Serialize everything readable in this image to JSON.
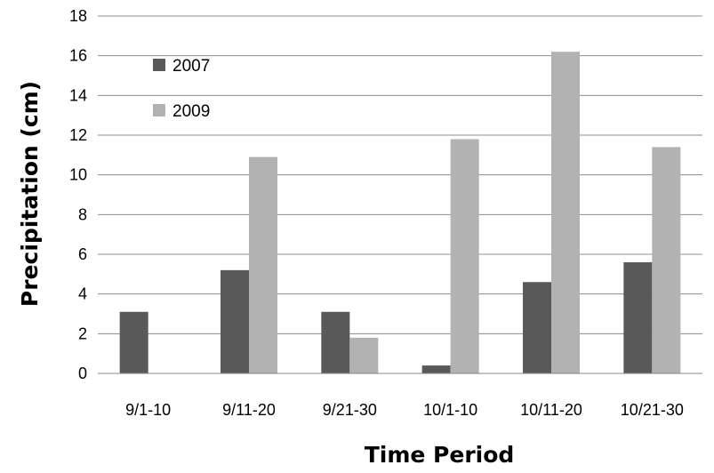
{
  "chart_data": {
    "type": "bar",
    "title": "",
    "xlabel": "Time Period",
    "ylabel": "Precipitation (cm)",
    "ylim": [
      0,
      18
    ],
    "yticks": [
      0,
      2,
      4,
      6,
      8,
      10,
      12,
      14,
      16,
      18
    ],
    "grid": true,
    "legend_position": "top-left",
    "categories": [
      "9/1-10",
      "9/11-20",
      "9/21-30",
      "10/1-10",
      "10/11-20",
      "10/21-30"
    ],
    "series": [
      {
        "name": "2007",
        "color": "#595959",
        "values": [
          3.1,
          5.2,
          3.1,
          0.4,
          4.6,
          5.6
        ]
      },
      {
        "name": "2009",
        "color": "#b2b2b2",
        "values": [
          0,
          10.9,
          1.8,
          11.8,
          16.2,
          11.4
        ]
      }
    ]
  }
}
